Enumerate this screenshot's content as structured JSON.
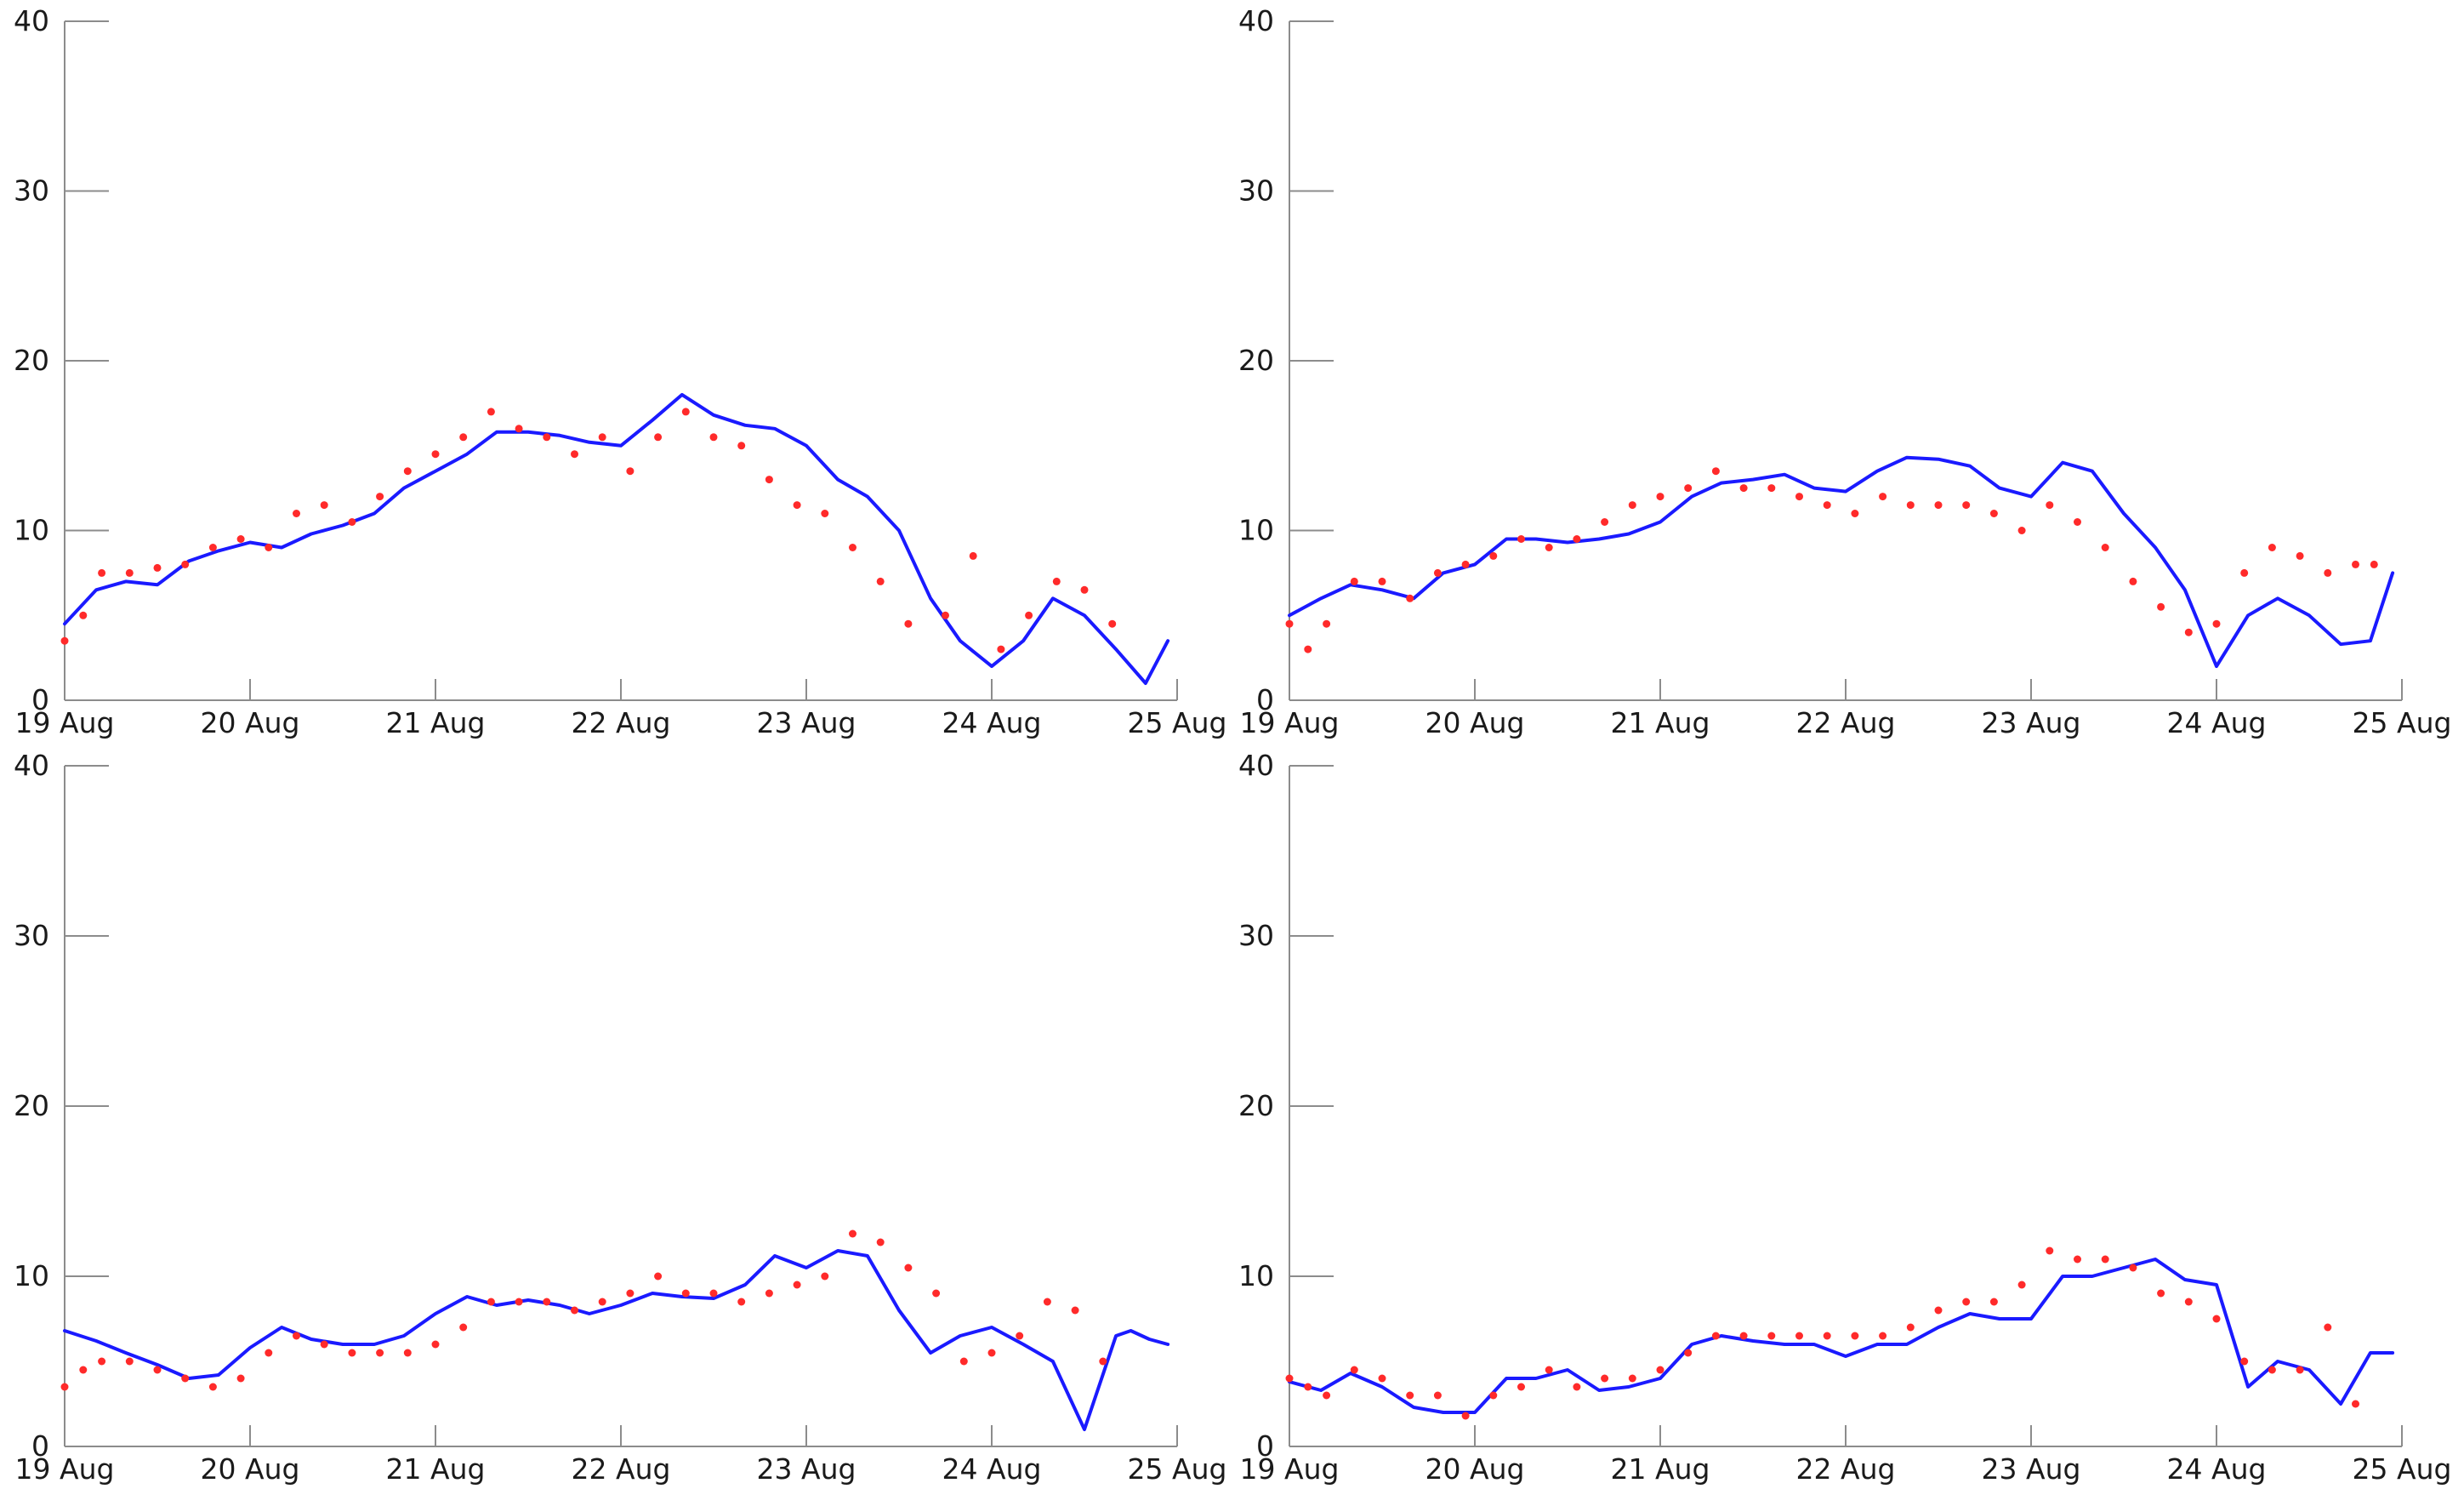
{
  "chart_data": [
    {
      "type": "line",
      "panel": "top-left",
      "x_ticks": [
        "19 Aug",
        "20 Aug",
        "21 Aug",
        "22 Aug",
        "23 Aug",
        "24 Aug",
        "25 Aug"
      ],
      "y_ticks": [
        "0",
        "10",
        "20",
        "30",
        "40"
      ],
      "xlim": [
        0,
        6
      ],
      "ylim": [
        0,
        40
      ],
      "grid": false,
      "series": [
        {
          "kind": "line",
          "color": "#1a1aff",
          "x": [
            0,
            0.17,
            0.33,
            0.5,
            0.67,
            0.83,
            1.0,
            1.17,
            1.33,
            1.5,
            1.67,
            1.83,
            2.0,
            2.17,
            2.33,
            2.5,
            2.67,
            2.83,
            3.0,
            3.17,
            3.33,
            3.5,
            3.67,
            3.83,
            4.0,
            4.17,
            4.33,
            4.5,
            4.67,
            4.83,
            5.0,
            5.17,
            5.33,
            5.5,
            5.67,
            5.83,
            5.95
          ],
          "y": [
            4.5,
            6.5,
            7.0,
            6.8,
            8.2,
            8.8,
            9.3,
            9.0,
            9.8,
            10.3,
            11.0,
            12.5,
            13.5,
            14.5,
            15.8,
            15.8,
            15.6,
            15.2,
            15.0,
            16.5,
            18.0,
            16.8,
            16.2,
            16.0,
            15.0,
            13.0,
            12.0,
            10.0,
            6.0,
            3.5,
            2.0,
            3.5,
            6.0,
            5.0,
            3.0,
            1.0,
            3.5
          ]
        },
        {
          "kind": "scatter",
          "color": "#ff2a2a",
          "x": [
            0,
            0.1,
            0.2,
            0.35,
            0.5,
            0.65,
            0.8,
            0.95,
            1.1,
            1.25,
            1.4,
            1.55,
            1.7,
            1.85,
            2.0,
            2.15,
            2.3,
            2.45,
            2.6,
            2.75,
            2.9,
            3.05,
            3.2,
            3.35,
            3.5,
            3.65,
            3.8,
            3.95,
            4.1,
            4.25,
            4.4,
            4.55,
            4.75,
            4.9,
            5.05,
            5.2,
            5.35,
            5.5,
            5.65
          ],
          "y": [
            3.5,
            5.0,
            7.5,
            7.5,
            7.8,
            8.0,
            9.0,
            9.5,
            9.0,
            11.0,
            11.5,
            10.5,
            12.0,
            13.5,
            14.5,
            15.5,
            17.0,
            16.0,
            15.5,
            14.5,
            15.5,
            13.5,
            15.5,
            17.0,
            15.5,
            15.0,
            13.0,
            11.5,
            11.0,
            9.0,
            7.0,
            4.5,
            5.0,
            8.5,
            3.0,
            5.0,
            7.0,
            6.5,
            4.5
          ]
        }
      ]
    },
    {
      "type": "line",
      "panel": "top-right",
      "x_ticks": [
        "19 Aug",
        "20 Aug",
        "21 Aug",
        "22 Aug",
        "23 Aug",
        "24 Aug",
        "25 Aug"
      ],
      "y_ticks": [
        "0",
        "10",
        "20",
        "30",
        "40"
      ],
      "xlim": [
        0,
        6
      ],
      "ylim": [
        0,
        40
      ],
      "grid": false,
      "series": [
        {
          "kind": "line",
          "color": "#1a1aff",
          "x": [
            0,
            0.17,
            0.33,
            0.5,
            0.67,
            0.83,
            1.0,
            1.17,
            1.33,
            1.5,
            1.67,
            1.83,
            2.0,
            2.17,
            2.33,
            2.5,
            2.67,
            2.83,
            3.0,
            3.17,
            3.33,
            3.5,
            3.67,
            3.83,
            4.0,
            4.17,
            4.33,
            4.5,
            4.67,
            4.83,
            5.0,
            5.17,
            5.33,
            5.5,
            5.67,
            5.83,
            5.95
          ],
          "y": [
            5.0,
            6.0,
            6.8,
            6.5,
            6.0,
            7.5,
            8.0,
            9.5,
            9.5,
            9.3,
            9.5,
            9.8,
            10.5,
            12.0,
            12.8,
            13.0,
            13.3,
            12.5,
            12.3,
            13.5,
            14.3,
            14.2,
            13.8,
            12.5,
            12.0,
            14.0,
            13.5,
            11.0,
            9.0,
            6.5,
            2.0,
            5.0,
            6.0,
            5.0,
            3.3,
            3.5,
            7.5
          ]
        },
        {
          "kind": "scatter",
          "color": "#ff2a2a",
          "x": [
            0,
            0.1,
            0.2,
            0.35,
            0.5,
            0.65,
            0.8,
            0.95,
            1.1,
            1.25,
            1.4,
            1.55,
            1.7,
            1.85,
            2.0,
            2.15,
            2.3,
            2.45,
            2.6,
            2.75,
            2.9,
            3.05,
            3.2,
            3.35,
            3.5,
            3.65,
            3.8,
            3.95,
            4.1,
            4.25,
            4.4,
            4.55,
            4.7,
            4.85,
            5.0,
            5.15,
            5.3,
            5.45,
            5.6,
            5.75,
            5.85
          ],
          "y": [
            4.5,
            3.0,
            4.5,
            7.0,
            7.0,
            6.0,
            7.5,
            8.0,
            8.5,
            9.5,
            9.0,
            9.5,
            10.5,
            11.5,
            12.0,
            12.5,
            13.5,
            12.5,
            12.5,
            12.0,
            11.5,
            11.0,
            12.0,
            11.5,
            11.5,
            11.5,
            11.0,
            10.0,
            11.5,
            10.5,
            9.0,
            7.0,
            5.5,
            4.0,
            4.5,
            7.5,
            9.0,
            8.5,
            7.5,
            8.0,
            8.0
          ]
        }
      ]
    },
    {
      "type": "line",
      "panel": "bottom-left",
      "x_ticks": [
        "19 Aug",
        "20 Aug",
        "21 Aug",
        "22 Aug",
        "23 Aug",
        "24 Aug",
        "25 Aug"
      ],
      "y_ticks": [
        "0",
        "10",
        "20",
        "30",
        "40"
      ],
      "xlim": [
        0,
        6
      ],
      "ylim": [
        0,
        40
      ],
      "grid": false,
      "series": [
        {
          "kind": "line",
          "color": "#1a1aff",
          "x": [
            0,
            0.17,
            0.33,
            0.5,
            0.67,
            0.83,
            1.0,
            1.17,
            1.33,
            1.5,
            1.67,
            1.83,
            2.0,
            2.17,
            2.33,
            2.5,
            2.67,
            2.83,
            3.0,
            3.17,
            3.33,
            3.5,
            3.67,
            3.83,
            4.0,
            4.17,
            4.33,
            4.5,
            4.67,
            4.83,
            5.0,
            5.17,
            5.33,
            5.5,
            5.67,
            5.75,
            5.85,
            5.95
          ],
          "y": [
            6.8,
            6.2,
            5.5,
            4.8,
            4.0,
            4.2,
            5.8,
            7.0,
            6.3,
            6.0,
            6.0,
            6.5,
            7.8,
            8.8,
            8.3,
            8.6,
            8.3,
            7.8,
            8.3,
            9.0,
            8.8,
            8.7,
            9.5,
            11.2,
            10.5,
            11.5,
            11.2,
            8.0,
            5.5,
            6.5,
            7.0,
            6.0,
            5.0,
            1.0,
            6.5,
            6.8,
            6.3,
            6.0
          ]
        },
        {
          "kind": "scatter",
          "color": "#ff2a2a",
          "x": [
            0,
            0.1,
            0.2,
            0.35,
            0.5,
            0.65,
            0.8,
            0.95,
            1.1,
            1.25,
            1.4,
            1.55,
            1.7,
            1.85,
            2.0,
            2.15,
            2.3,
            2.45,
            2.6,
            2.75,
            2.9,
            3.05,
            3.2,
            3.35,
            3.5,
            3.65,
            3.8,
            3.95,
            4.1,
            4.25,
            4.4,
            4.55,
            4.7,
            4.85,
            5.0,
            5.15,
            5.3,
            5.45,
            5.6
          ],
          "y": [
            3.5,
            4.5,
            5.0,
            5.0,
            4.5,
            4.0,
            3.5,
            4.0,
            5.5,
            6.5,
            6.0,
            5.5,
            5.5,
            5.5,
            6.0,
            7.0,
            8.5,
            8.5,
            8.5,
            8.0,
            8.5,
            9.0,
            10.0,
            9.0,
            9.0,
            8.5,
            9.0,
            9.5,
            10.0,
            12.5,
            12.0,
            10.5,
            9.0,
            5.0,
            5.5,
            6.5,
            8.5,
            8.0,
            5.0
          ]
        }
      ]
    },
    {
      "type": "line",
      "panel": "bottom-right",
      "x_ticks": [
        "19 Aug",
        "20 Aug",
        "21 Aug",
        "22 Aug",
        "23 Aug",
        "24 Aug",
        "25 Aug"
      ],
      "y_ticks": [
        "0",
        "10",
        "20",
        "30",
        "40"
      ],
      "xlim": [
        0,
        6
      ],
      "ylim": [
        0,
        40
      ],
      "grid": false,
      "series": [
        {
          "kind": "line",
          "color": "#1a1aff",
          "x": [
            0,
            0.17,
            0.33,
            0.5,
            0.67,
            0.83,
            1.0,
            1.17,
            1.33,
            1.5,
            1.67,
            1.83,
            2.0,
            2.17,
            2.33,
            2.5,
            2.67,
            2.83,
            3.0,
            3.17,
            3.33,
            3.5,
            3.67,
            3.83,
            4.0,
            4.17,
            4.33,
            4.5,
            4.67,
            4.83,
            5.0,
            5.17,
            5.33,
            5.5,
            5.67,
            5.83,
            5.95
          ],
          "y": [
            3.8,
            3.3,
            4.3,
            3.5,
            2.3,
            2.0,
            2.0,
            4.0,
            4.0,
            4.5,
            3.3,
            3.5,
            4.0,
            6.0,
            6.5,
            6.2,
            6.0,
            6.0,
            5.3,
            6.0,
            6.0,
            7.0,
            7.8,
            7.5,
            7.5,
            10.0,
            10.0,
            10.5,
            11.0,
            9.8,
            9.5,
            3.5,
            5.0,
            4.5,
            2.5,
            5.5,
            5.5
          ]
        },
        {
          "kind": "scatter",
          "color": "#ff2a2a",
          "x": [
            0,
            0.1,
            0.2,
            0.35,
            0.5,
            0.65,
            0.8,
            0.95,
            1.1,
            1.25,
            1.4,
            1.55,
            1.7,
            1.85,
            2.0,
            2.15,
            2.3,
            2.45,
            2.6,
            2.75,
            2.9,
            3.05,
            3.2,
            3.35,
            3.5,
            3.65,
            3.8,
            3.95,
            4.1,
            4.25,
            4.4,
            4.55,
            4.7,
            4.85,
            5.0,
            5.15,
            5.3,
            5.45,
            5.6,
            5.75
          ],
          "y": [
            4.0,
            3.5,
            3.0,
            4.5,
            4.0,
            3.0,
            3.0,
            1.8,
            3.0,
            3.5,
            4.5,
            3.5,
            4.0,
            4.0,
            4.5,
            5.5,
            6.5,
            6.5,
            6.5,
            6.5,
            6.5,
            6.5,
            6.5,
            7.0,
            8.0,
            8.5,
            8.5,
            9.5,
            11.5,
            11.0,
            11.0,
            10.5,
            9.0,
            8.5,
            7.5,
            5.0,
            4.5,
            4.5,
            7.0,
            2.5
          ]
        }
      ]
    }
  ]
}
